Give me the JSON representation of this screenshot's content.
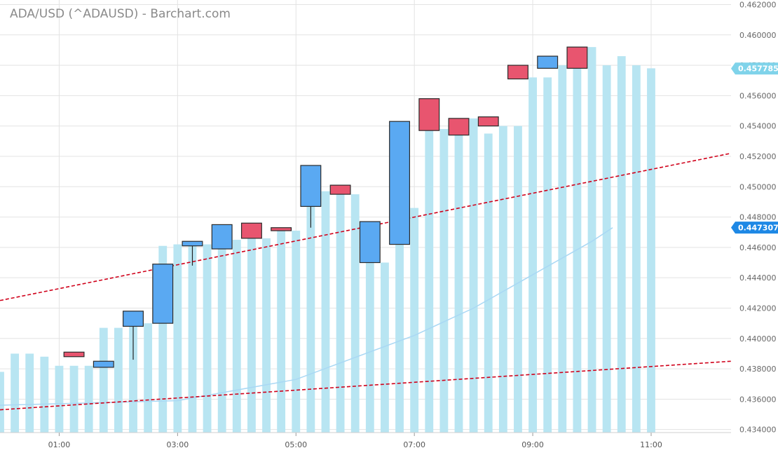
{
  "chart_data": {
    "title": "ADA/USD (^ADAUSD) - Barchart.com",
    "type": "candlestick",
    "x_axis": {
      "range_hours": [
        0,
        12.35
      ],
      "tick_labels": [
        "01:00",
        "03:00",
        "05:00",
        "07:00",
        "09:00",
        "11:00"
      ],
      "tick_hours": [
        1,
        3,
        5,
        7,
        9,
        11
      ]
    },
    "y_axis": {
      "range": [
        0.4338,
        0.4623
      ],
      "tick_values": [
        0.434,
        0.436,
        0.438,
        0.44,
        0.442,
        0.444,
        0.446,
        0.448,
        0.45,
        0.452,
        0.454,
        0.456,
        0.458,
        0.46,
        0.462
      ],
      "tick_labels": [
        "0.434000",
        "0.436000",
        "0.438000",
        "0.440000",
        "0.442000",
        "0.444000",
        "0.446000",
        "0.448000",
        "0.450000",
        "0.452000",
        "0.454000",
        "0.456000",
        "0.458000",
        "0.460000",
        "0.462000"
      ],
      "position": "right"
    },
    "grid": true,
    "candles": [
      {
        "t": 1.25,
        "open": 0.4391,
        "high": 0.4391,
        "low": 0.4388,
        "close": 0.4388
      },
      {
        "t": 1.75,
        "open": 0.4381,
        "high": 0.4385,
        "low": 0.4381,
        "close": 0.4385
      },
      {
        "t": 2.25,
        "open": 0.4408,
        "high": 0.4418,
        "low": 0.4386,
        "close": 0.4418
      },
      {
        "t": 2.75,
        "open": 0.441,
        "high": 0.4449,
        "low": 0.441,
        "close": 0.4449
      },
      {
        "t": 3.25,
        "open": 0.4461,
        "high": 0.4464,
        "low": 0.4448,
        "close": 0.4464
      },
      {
        "t": 3.75,
        "open": 0.4459,
        "high": 0.4475,
        "low": 0.4459,
        "close": 0.4475
      },
      {
        "t": 4.25,
        "open": 0.4476,
        "high": 0.4476,
        "low": 0.4466,
        "close": 0.4466
      },
      {
        "t": 4.75,
        "open": 0.4473,
        "high": 0.4473,
        "low": 0.4471,
        "close": 0.4471
      },
      {
        "t": 5.25,
        "open": 0.4487,
        "high": 0.4514,
        "low": 0.4473,
        "close": 0.4514
      },
      {
        "t": 5.75,
        "open": 0.4501,
        "high": 0.4501,
        "low": 0.4495,
        "close": 0.4495
      },
      {
        "t": 6.25,
        "open": 0.445,
        "high": 0.4477,
        "low": 0.445,
        "close": 0.4477
      },
      {
        "t": 6.75,
        "open": 0.4462,
        "high": 0.4543,
        "low": 0.4462,
        "close": 0.4543
      },
      {
        "t": 7.25,
        "open": 0.4558,
        "high": 0.4558,
        "low": 0.4537,
        "close": 0.4537
      },
      {
        "t": 7.75,
        "open": 0.4545,
        "high": 0.4545,
        "low": 0.4534,
        "close": 0.4534
      },
      {
        "t": 8.25,
        "open": 0.4546,
        "high": 0.4546,
        "low": 0.454,
        "close": 0.454
      },
      {
        "t": 8.75,
        "open": 0.458,
        "high": 0.458,
        "low": 0.4571,
        "close": 0.4571
      },
      {
        "t": 9.25,
        "open": 0.4578,
        "high": 0.4586,
        "low": 0.4578,
        "close": 0.4586
      },
      {
        "t": 9.75,
        "open": 0.4592,
        "high": 0.4592,
        "low": 0.4578,
        "close": 0.4578
      }
    ],
    "area_bars": {
      "t_start": 0,
      "t_step": 0.25,
      "values": [
        0.4378,
        0.439,
        0.439,
        0.4388,
        0.4382,
        0.4382,
        0.4382,
        0.4407,
        0.4407,
        0.441,
        0.441,
        0.4461,
        0.4462,
        0.4463,
        0.4462,
        0.4465,
        0.4465,
        0.4466,
        0.4466,
        0.4471,
        0.4471,
        0.4487,
        0.4497,
        0.4497,
        0.4495,
        0.445,
        0.445,
        0.4486,
        0.4486,
        0.4556,
        0.4538,
        0.4538,
        0.4545,
        0.4535,
        0.454,
        0.454,
        0.4572,
        0.4572,
        0.458,
        0.458,
        0.4592,
        0.458,
        0.4586,
        0.458,
        0.4578
      ]
    },
    "trendlines": [
      {
        "t0": 0,
        "v0": 0.4425,
        "t1": 12.35,
        "v1": 0.4522
      },
      {
        "t0": 0,
        "v0": 0.4353,
        "t1": 12.35,
        "v1": 0.4385
      }
    ],
    "moving_average": [
      [
        0,
        0.4356
      ],
      [
        3,
        0.4359
      ],
      [
        5,
        0.4373
      ],
      [
        7,
        0.4402
      ],
      [
        8,
        0.442
      ],
      [
        9,
        0.4442
      ],
      [
        10,
        0.4464
      ],
      [
        10.35,
        0.4473
      ]
    ],
    "last_labels": [
      {
        "text": "0.457785",
        "value": 0.457785,
        "color": "#7fd3ea"
      },
      {
        "text": "0.447307",
        "value": 0.447307,
        "color": "#1e88e5"
      }
    ],
    "colors": {
      "up": "#5aa9f2",
      "down": "#e8556f",
      "area": "#b8e5f2",
      "trend": "#d0021b",
      "ma": "#a9d8f4",
      "grid": "#e3e3e3"
    }
  }
}
